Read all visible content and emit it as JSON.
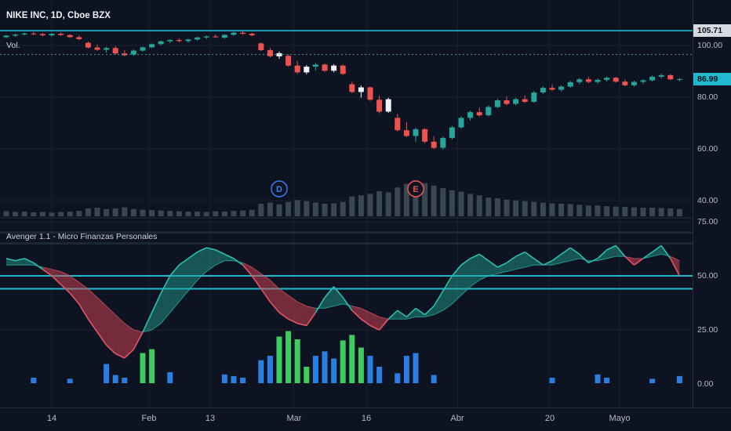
{
  "header": {
    "symbol_legend": "NIKE INC, 1D, Cboe BZX",
    "volume_legend": "Vol.",
    "indicator_legend": "Avenger 1.1 - Micro Finanzas Personales"
  },
  "colors": {
    "bg": "#0d1320",
    "grid": "#1a2130",
    "pane_border": "#2a2e39",
    "up": "#26a69a",
    "down": "#ef5350",
    "white_candle": "#f0f3fa",
    "cyan_line": "#22b8cf",
    "dashed_line": "rgba(80,200,210,0.7)",
    "vol_bar": "rgba(140,165,180,0.35)",
    "teal_fill": "rgba(38,166,154,0.45)",
    "red_fill": "rgba(220,70,85,0.5)",
    "teal_stroke": "#2bbfae",
    "red_stroke": "#e05566",
    "hist_green": "#3ecb5f",
    "hist_blue": "#2a7de1",
    "axis_text": "#b6bac4",
    "marker_d": "#3d7bf5",
    "marker_e": "#ef5350"
  },
  "price_axis": {
    "labels": [
      {
        "text": "105.71",
        "value": 105.71,
        "pane": "price",
        "tag": "light"
      },
      {
        "text": "100.00",
        "value": 100,
        "pane": "price"
      },
      {
        "text": "86.99",
        "value": 86.99,
        "pane": "price",
        "tag": "teal"
      },
      {
        "text": "80.00",
        "value": 80,
        "pane": "price"
      },
      {
        "text": "60.00",
        "value": 60,
        "pane": "price"
      },
      {
        "text": "40.00",
        "value": 40,
        "pane": "price"
      },
      {
        "text": "75.00",
        "value": 75,
        "pane": "ind"
      },
      {
        "text": "50.00",
        "value": 50,
        "pane": "ind"
      },
      {
        "text": "25.00",
        "value": 25,
        "pane": "ind"
      },
      {
        "text": "0.00",
        "value": 0,
        "pane": "ind"
      }
    ]
  },
  "time_axis": {
    "ticks": [
      {
        "label": "14",
        "i": 5
      },
      {
        "label": "Feb",
        "i": 15.7
      },
      {
        "label": "13",
        "i": 22.4
      },
      {
        "label": "Mar",
        "i": 31.6
      },
      {
        "label": "16",
        "i": 39.6
      },
      {
        "label": "Abr",
        "i": 49.6
      },
      {
        "label": "20",
        "i": 59.7
      },
      {
        "label": "Mayo",
        "i": 67.4
      }
    ]
  },
  "markers": [
    {
      "label": "D",
      "name": "dividends-marker",
      "i": 30,
      "color": "#3d7bf5"
    },
    {
      "label": "E",
      "name": "earnings-marker",
      "i": 45,
      "color": "#ef5350"
    }
  ],
  "lines": {
    "price_solid": 105.71,
    "price_dashed": 96.5,
    "ind_solid": [
      50,
      44
    ],
    "ind_faint": [
      70,
      65
    ]
  },
  "chart_data": {
    "type": "candlestick",
    "symbol": "NIKE INC",
    "interval": "1D",
    "exchange": "Cboe BZX",
    "last_price": 86.99,
    "price_gridlines": [
      100,
      80,
      60,
      40
    ],
    "indicator_gridlines": [
      75,
      50,
      25
    ],
    "x_ticks": [
      "14",
      "Feb",
      "13",
      "Mar",
      "16",
      "Abr",
      "20",
      "Mayo"
    ],
    "candles": [
      [
        103.2,
        104.1,
        102.8,
        103.8
      ],
      [
        103.8,
        104.6,
        103.3,
        104.2
      ],
      [
        104.2,
        105.0,
        103.9,
        104.6
      ],
      [
        104.6,
        105.2,
        104.0,
        104.4
      ],
      [
        104.4,
        104.9,
        103.5,
        103.9
      ],
      [
        103.9,
        104.8,
        103.4,
        104.5
      ],
      [
        104.5,
        105.1,
        103.8,
        104.0
      ],
      [
        104.0,
        104.4,
        102.9,
        103.2
      ],
      [
        103.2,
        103.9,
        102.0,
        102.4
      ],
      [
        101.0,
        101.5,
        98.8,
        99.2
      ],
      [
        99.2,
        100.4,
        97.9,
        98.3
      ],
      [
        98.3,
        99.5,
        97.2,
        99.0
      ],
      [
        99.0,
        99.8,
        96.5,
        96.9
      ],
      [
        96.9,
        98.2,
        95.8,
        96.2
      ],
      [
        96.5,
        98.4,
        96.0,
        98.0
      ],
      [
        98.0,
        99.6,
        97.6,
        99.3
      ],
      [
        99.3,
        100.8,
        99.0,
        100.5
      ],
      [
        100.5,
        101.9,
        100.1,
        101.6
      ],
      [
        101.6,
        102.4,
        100.9,
        102.1
      ],
      [
        102.1,
        102.8,
        101.2,
        101.7
      ],
      [
        101.7,
        102.6,
        101.1,
        102.3
      ],
      [
        102.3,
        103.4,
        101.9,
        103.1
      ],
      [
        103.1,
        103.9,
        102.5,
        103.5
      ],
      [
        103.5,
        104.2,
        102.9,
        103.2
      ],
      [
        103.0,
        104.4,
        102.6,
        104.1
      ],
      [
        104.1,
        105.3,
        103.8,
        104.9
      ],
      [
        104.9,
        105.6,
        104.2,
        104.5
      ],
      [
        104.5,
        105.0,
        103.6,
        103.9
      ],
      [
        100.8,
        101.2,
        97.8,
        98.2
      ],
      [
        98.2,
        99.0,
        95.4,
        95.8
      ],
      [
        95.8,
        97.6,
        94.8,
        97.0
      ],
      [
        96.0,
        96.5,
        91.8,
        92.2
      ],
      [
        92.2,
        94.0,
        89.0,
        89.6
      ],
      [
        89.6,
        92.4,
        88.9,
        91.8
      ],
      [
        91.8,
        93.2,
        90.4,
        92.6
      ],
      [
        92.6,
        93.0,
        89.8,
        90.2
      ],
      [
        90.2,
        92.8,
        89.6,
        92.2
      ],
      [
        92.2,
        92.6,
        88.6,
        89.0
      ],
      [
        85.0,
        86.0,
        81.5,
        82.0
      ],
      [
        82.0,
        84.5,
        79.8,
        83.8
      ],
      [
        83.8,
        84.2,
        78.5,
        79.0
      ],
      [
        79.0,
        80.5,
        73.8,
        74.4
      ],
      [
        74.4,
        79.8,
        73.9,
        79.2
      ],
      [
        72.0,
        73.5,
        66.8,
        67.2
      ],
      [
        67.2,
        70.4,
        64.5,
        65.0
      ],
      [
        65.0,
        68.2,
        62.8,
        67.6
      ],
      [
        67.6,
        68.0,
        62.2,
        62.8
      ],
      [
        62.8,
        64.9,
        59.9,
        60.4
      ],
      [
        60.4,
        64.8,
        59.8,
        64.2
      ],
      [
        64.2,
        68.9,
        63.6,
        68.3
      ],
      [
        68.3,
        72.6,
        67.8,
        72.0
      ],
      [
        72.0,
        74.8,
        70.9,
        74.2
      ],
      [
        74.2,
        76.0,
        72.5,
        73.0
      ],
      [
        73.0,
        76.8,
        72.6,
        76.2
      ],
      [
        76.2,
        79.4,
        75.8,
        78.8
      ],
      [
        78.8,
        80.2,
        76.9,
        77.4
      ],
      [
        77.4,
        79.8,
        76.8,
        79.2
      ],
      [
        79.2,
        80.6,
        77.8,
        78.2
      ],
      [
        78.2,
        82.4,
        77.9,
        81.8
      ],
      [
        81.8,
        84.2,
        81.2,
        83.6
      ],
      [
        83.6,
        85.0,
        82.4,
        82.9
      ],
      [
        82.9,
        84.6,
        82.2,
        84.1
      ],
      [
        84.1,
        86.3,
        83.6,
        85.8
      ],
      [
        85.8,
        87.4,
        85.0,
        86.9
      ],
      [
        86.9,
        87.8,
        85.4,
        85.9
      ],
      [
        85.9,
        87.2,
        85.2,
        86.7
      ],
      [
        86.7,
        88.0,
        86.0,
        87.5
      ],
      [
        87.5,
        87.9,
        85.6,
        86.0
      ],
      [
        86.0,
        86.8,
        84.2,
        84.6
      ],
      [
        84.6,
        86.4,
        84.0,
        85.9
      ],
      [
        85.9,
        87.0,
        85.1,
        86.5
      ],
      [
        86.5,
        88.4,
        86.1,
        87.9
      ],
      [
        87.9,
        89.0,
        87.2,
        88.5
      ],
      [
        88.5,
        88.9,
        86.5,
        86.9
      ],
      [
        86.9,
        87.4,
        86.1,
        86.99
      ]
    ],
    "white_candles": [
      30,
      33,
      36,
      39,
      42
    ],
    "volume": [
      0.14,
      0.12,
      0.13,
      0.11,
      0.12,
      0.1,
      0.12,
      0.13,
      0.15,
      0.22,
      0.24,
      0.2,
      0.22,
      0.25,
      0.2,
      0.18,
      0.17,
      0.16,
      0.15,
      0.14,
      0.13,
      0.13,
      0.12,
      0.14,
      0.13,
      0.15,
      0.16,
      0.18,
      0.35,
      0.38,
      0.33,
      0.4,
      0.45,
      0.42,
      0.38,
      0.35,
      0.36,
      0.4,
      0.55,
      0.58,
      0.62,
      0.7,
      0.66,
      0.8,
      0.9,
      1.0,
      0.92,
      0.85,
      0.78,
      0.72,
      0.68,
      0.62,
      0.58,
      0.52,
      0.5,
      0.46,
      0.44,
      0.42,
      0.4,
      0.38,
      0.36,
      0.35,
      0.34,
      0.32,
      0.3,
      0.3,
      0.28,
      0.27,
      0.26,
      0.25,
      0.24,
      0.24,
      0.23,
      0.22,
      0.2
    ],
    "indicator": {
      "name": "Avenger 1.1 - Micro Finanzas Personales",
      "range": [
        0,
        75
      ],
      "fast": [
        58,
        57,
        58,
        56,
        53,
        50,
        46,
        42,
        37,
        30,
        24,
        18,
        14,
        12,
        16,
        24,
        33,
        42,
        50,
        55,
        58,
        61,
        63,
        62,
        60,
        58,
        55,
        50,
        44,
        38,
        33,
        30,
        28,
        27,
        33,
        40,
        45,
        40,
        34,
        30,
        27,
        25,
        30,
        34,
        31,
        35,
        32,
        36,
        43,
        50,
        55,
        58,
        60,
        57,
        54,
        56,
        59,
        61,
        58,
        55,
        57,
        60,
        63,
        60,
        56,
        58,
        62,
        64,
        59,
        55,
        58,
        61,
        64,
        58,
        50
      ],
      "slow": [
        55,
        55,
        55,
        55,
        54,
        53,
        52,
        50,
        47,
        44,
        40,
        36,
        32,
        28,
        25,
        24,
        25,
        28,
        33,
        38,
        43,
        48,
        52,
        55,
        57,
        57,
        56,
        54,
        51,
        48,
        44,
        41,
        38,
        36,
        35,
        35,
        36,
        37,
        36,
        35,
        33,
        31,
        30,
        30,
        30,
        31,
        31,
        32,
        34,
        37,
        41,
        45,
        48,
        50,
        51,
        52,
        53,
        54,
        55,
        55,
        55,
        56,
        57,
        58,
        57,
        57,
        58,
        59,
        59,
        58,
        58,
        59,
        60,
        59,
        57
      ],
      "histogram": [
        [
          3,
          0.1,
          "b"
        ],
        [
          7,
          0.08,
          "b"
        ],
        [
          11,
          0.35,
          "b"
        ],
        [
          12,
          0.15,
          "b"
        ],
        [
          13,
          0.1,
          "b"
        ],
        [
          15,
          0.55,
          "g"
        ],
        [
          16,
          0.62,
          "g"
        ],
        [
          18,
          0.2,
          "b"
        ],
        [
          24,
          0.16,
          "b"
        ],
        [
          25,
          0.13,
          "b"
        ],
        [
          26,
          0.1,
          "b"
        ],
        [
          28,
          0.42,
          "b"
        ],
        [
          29,
          0.5,
          "b"
        ],
        [
          30,
          0.85,
          "g"
        ],
        [
          31,
          0.95,
          "g"
        ],
        [
          32,
          0.8,
          "g"
        ],
        [
          33,
          0.3,
          "g"
        ],
        [
          34,
          0.5,
          "b"
        ],
        [
          35,
          0.58,
          "b"
        ],
        [
          36,
          0.45,
          "b"
        ],
        [
          37,
          0.78,
          "g"
        ],
        [
          38,
          0.88,
          "g"
        ],
        [
          39,
          0.65,
          "g"
        ],
        [
          40,
          0.5,
          "b"
        ],
        [
          41,
          0.3,
          "b"
        ],
        [
          43,
          0.18,
          "b"
        ],
        [
          44,
          0.5,
          "b"
        ],
        [
          45,
          0.55,
          "b"
        ],
        [
          47,
          0.15,
          "b"
        ],
        [
          60,
          0.1,
          "b"
        ],
        [
          65,
          0.16,
          "b"
        ],
        [
          66,
          0.1,
          "b"
        ],
        [
          71,
          0.08,
          "b"
        ],
        [
          74,
          0.13,
          "b"
        ]
      ]
    }
  }
}
